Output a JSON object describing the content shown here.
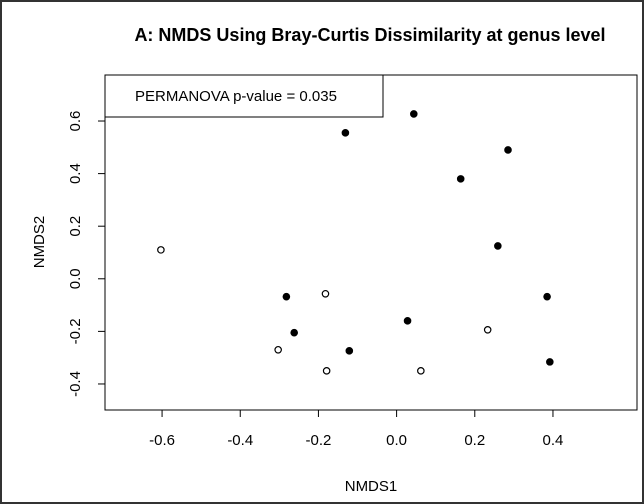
{
  "chart_data": {
    "type": "scatter",
    "title": "A: NMDS Using Bray-Curtis Dissimilarity at genus level",
    "annotation": "PERMANOVA p-value = 0.035",
    "xlabel": "NMDS1",
    "ylabel": "NMDS2",
    "xlim": [
      -0.746,
      0.615
    ],
    "ylim": [
      -0.499,
      0.775
    ],
    "xticks": [
      -0.6,
      -0.4,
      -0.2,
      {
        "value": 0,
        "label": "0.0"
      },
      0.2,
      0.4
    ],
    "yticks": [
      -0.4,
      -0.2,
      {
        "value": 0,
        "label": "0.0"
      },
      0.2,
      0.4,
      0.6
    ],
    "grid": false,
    "series": [
      {
        "color": "#000000",
        "filled": true,
        "x": [
          -0.131,
          0.044,
          0.285,
          0.164,
          0.259,
          -0.282,
          -0.262,
          0.028,
          -0.121,
          0.385,
          0.392
        ],
        "y": [
          0.555,
          0.627,
          0.49,
          0.38,
          0.125,
          -0.068,
          -0.205,
          -0.16,
          -0.274,
          -0.068,
          -0.316
        ]
      },
      {
        "color": "#000000",
        "filled": false,
        "x": [
          -0.603,
          -0.182,
          -0.303,
          -0.179,
          0.233,
          0.062
        ],
        "y": [
          0.11,
          -0.057,
          -0.27,
          -0.35,
          -0.194,
          -0.35
        ]
      }
    ]
  }
}
